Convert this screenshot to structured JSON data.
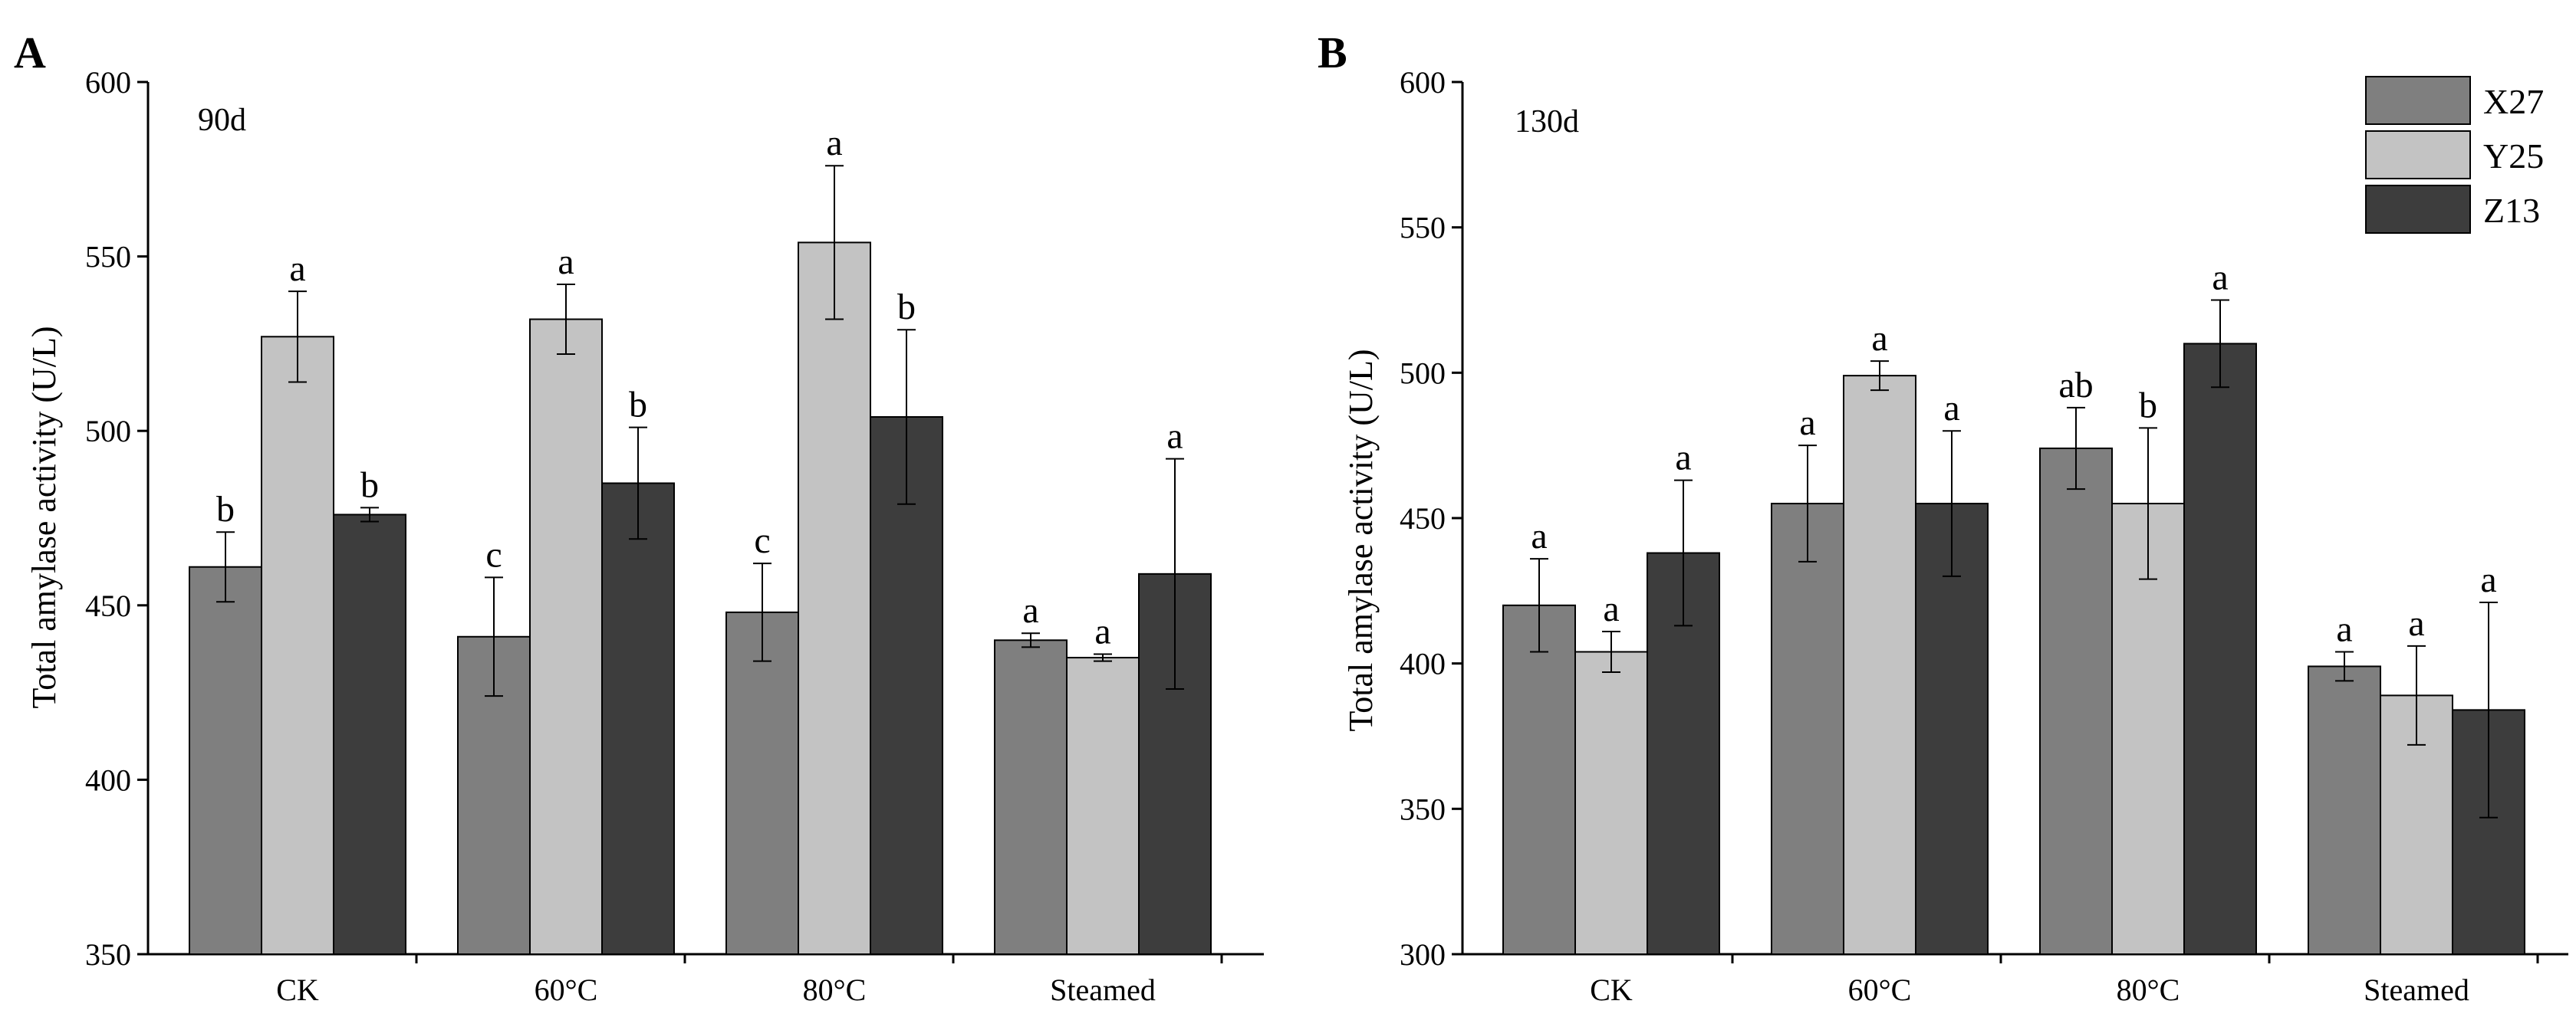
{
  "figure": {
    "series_colors": {
      "X27": "#7f7f7f",
      "Y25": "#c3c3c3",
      "Z13": "#3d3d3d"
    }
  },
  "legend": {
    "items": [
      {
        "name": "X27",
        "color": "#7f7f7f"
      },
      {
        "name": "Y25",
        "color": "#c3c3c3"
      },
      {
        "name": "Z13",
        "color": "#3d3d3d"
      }
    ],
    "placement": "top-right of panel B"
  },
  "chart_data": [
    {
      "type": "bar",
      "panel_label": "A",
      "title": "90d",
      "xlabel": "",
      "ylabel": "Total amylase activity (U/L)",
      "ylim": [
        350,
        600
      ],
      "yticks": [
        350,
        400,
        450,
        500,
        550,
        600
      ],
      "categories": [
        "CK",
        "60°C",
        "80°C",
        "Steamed"
      ],
      "series": [
        {
          "name": "X27",
          "values": [
            461,
            441,
            448,
            440
          ],
          "errors": [
            10,
            17,
            14,
            2
          ],
          "letters": [
            "b",
            "c",
            "c",
            "a"
          ]
        },
        {
          "name": "Y25",
          "values": [
            527,
            532,
            554,
            435
          ],
          "errors": [
            13,
            10,
            22,
            1
          ],
          "letters": [
            "a",
            "a",
            "a",
            "a"
          ]
        },
        {
          "name": "Z13",
          "values": [
            476,
            485,
            504,
            459
          ],
          "errors": [
            2,
            16,
            25,
            33
          ],
          "letters": [
            "b",
            "b",
            "b",
            "a"
          ]
        }
      ],
      "grid": false
    },
    {
      "type": "bar",
      "panel_label": "B",
      "title": "130d",
      "xlabel": "",
      "ylabel": "Total amylase activity (U/L)",
      "ylim": [
        300,
        600
      ],
      "yticks": [
        300,
        350,
        400,
        450,
        500,
        550,
        600
      ],
      "categories": [
        "CK",
        "60°C",
        "80°C",
        "Steamed"
      ],
      "series": [
        {
          "name": "X27",
          "values": [
            420,
            455,
            474,
            399
          ],
          "errors": [
            16,
            20,
            14,
            5
          ],
          "letters": [
            "a",
            "a",
            "ab",
            "a"
          ]
        },
        {
          "name": "Y25",
          "values": [
            404,
            499,
            455,
            389
          ],
          "errors": [
            7,
            5,
            26,
            17
          ],
          "letters": [
            "a",
            "a",
            "b",
            "a"
          ]
        },
        {
          "name": "Z13",
          "values": [
            438,
            455,
            510,
            384
          ],
          "errors": [
            25,
            25,
            15,
            37
          ],
          "letters": [
            "a",
            "a",
            "a",
            "a"
          ]
        }
      ],
      "grid": false
    }
  ]
}
